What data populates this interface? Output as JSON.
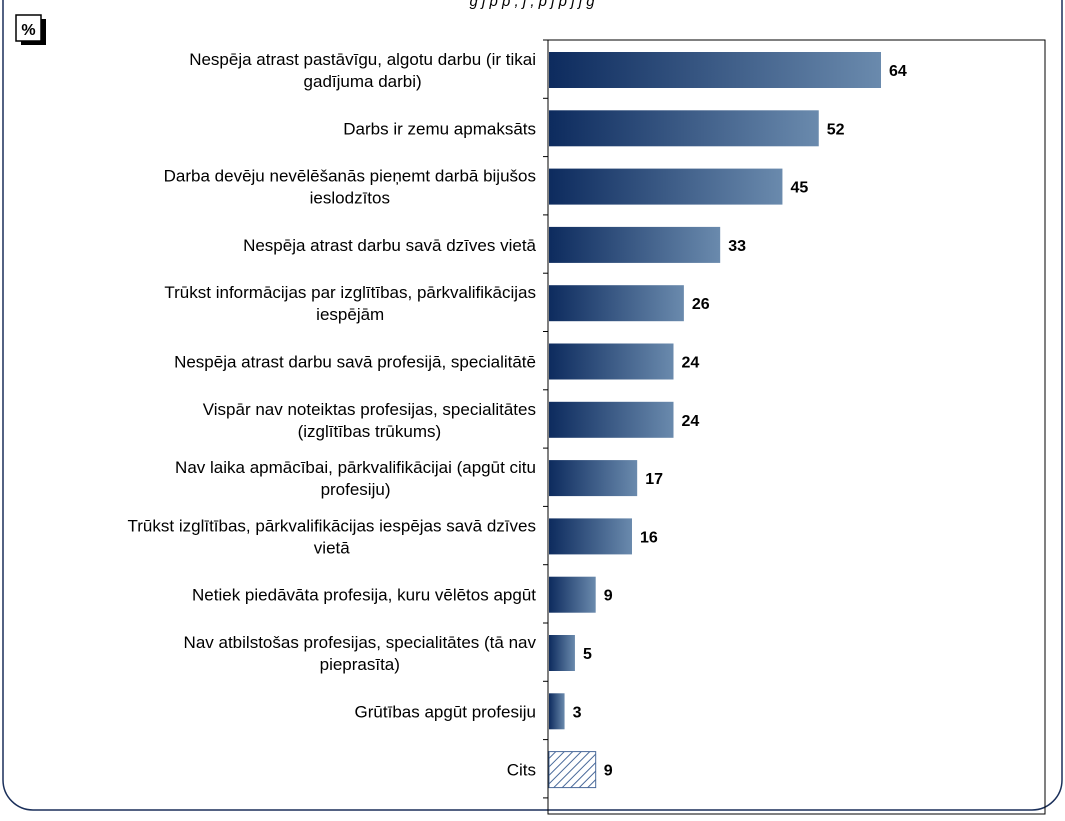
{
  "header": {
    "cut_text": "   g          j   p     p             ,                           j                          ,  p        j   p  j   j  g"
  },
  "unit_badge": "%",
  "chart_data": {
    "type": "bar",
    "orientation": "horizontal",
    "xlim": [
      0,
      90
    ],
    "grid": false,
    "legend": "none",
    "categories": [
      [
        "Nespēja atrast pastāvīgu, algotu darbu (ir tikai",
        "gadījuma darbi)"
      ],
      [
        "Darbs ir zemu apmaksāts"
      ],
      [
        "Darba devēju nevēlēšanās pieņemt darbā bijušos",
        "ieslodzītos"
      ],
      [
        "Nespēja atrast darbu savā dzīves vietā"
      ],
      [
        "Trūkst informācijas par izglītības, pārkvalifikācijas",
        "iespējām"
      ],
      [
        "Nespēja atrast darbu savā profesijā, specialitātē"
      ],
      [
        "Vispār nav noteiktas profesijas, specialitātes",
        "(izglītības trūkums)"
      ],
      [
        "Nav laika apmācībai, pārkvalifikācijai (apgūt citu",
        "profesiju)"
      ],
      [
        "Trūkst izglītības, pārkvalifikācijas iespējas savā dzīves",
        "vietā"
      ],
      [
        "Netiek piedāvāta profesija, kuru vēlētos apgūt"
      ],
      [
        "Nav atbilstošas profesijas, specialitātes (tā nav",
        "pieprasīta)"
      ],
      [
        "Grūtības apgūt profesiju"
      ],
      [
        "Cits"
      ]
    ],
    "values": [
      64,
      52,
      45,
      33,
      26,
      24,
      24,
      17,
      16,
      9,
      5,
      3,
      9
    ],
    "hatched_last": true,
    "colors": {
      "bar_dark": "#0d2b5e",
      "bar_light": "#6a8aad",
      "hatch": "#4a6a9a",
      "axis": "#000000",
      "frame": "#1a2f5a"
    }
  }
}
